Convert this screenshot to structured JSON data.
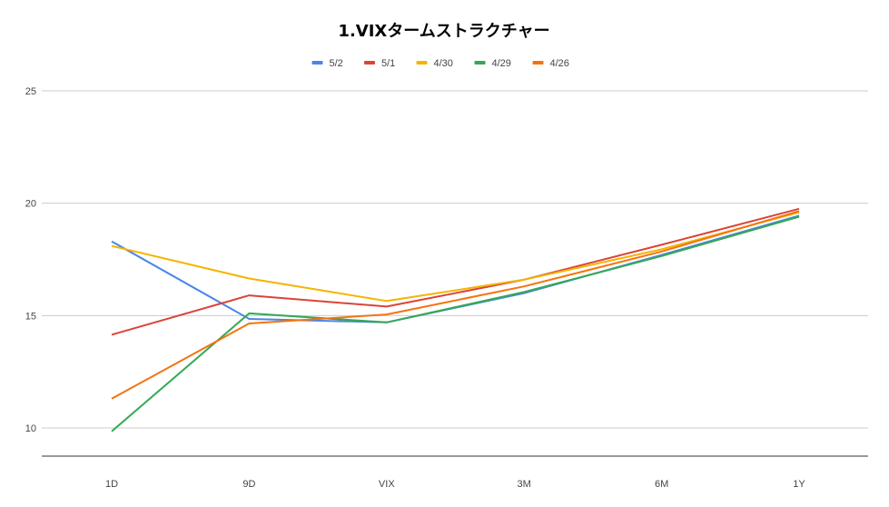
{
  "colors": {
    "5/2": "#4a86e8",
    "5/1": "#db4437",
    "4/30": "#f4b400",
    "4/29": "#34a853",
    "4/26": "#f4730f",
    "grid": "#cccccc",
    "axis": "#333333"
  },
  "chart_data": {
    "type": "line",
    "title": "1.VIXタームストラクチャー",
    "xlabel": "",
    "ylabel": "",
    "categories": [
      "1D",
      "9D",
      "VIX",
      "3M",
      "6M",
      "1Y"
    ],
    "ylim": [
      10,
      25
    ],
    "yticks": [
      10,
      15,
      20,
      25
    ],
    "grid": true,
    "legend_position": "top",
    "series": [
      {
        "name": "5/2",
        "values": [
          18.3,
          14.85,
          14.7,
          16.0,
          17.7,
          19.45
        ]
      },
      {
        "name": "5/1",
        "values": [
          14.15,
          15.9,
          15.4,
          16.6,
          18.15,
          19.75
        ]
      },
      {
        "name": "4/30",
        "values": [
          18.1,
          16.65,
          15.65,
          16.6,
          17.95,
          19.6
        ]
      },
      {
        "name": "4/29",
        "values": [
          9.85,
          15.1,
          14.7,
          16.05,
          17.65,
          19.4
        ]
      },
      {
        "name": "4/26",
        "values": [
          11.3,
          14.65,
          15.05,
          16.3,
          17.85,
          19.65
        ]
      }
    ]
  }
}
